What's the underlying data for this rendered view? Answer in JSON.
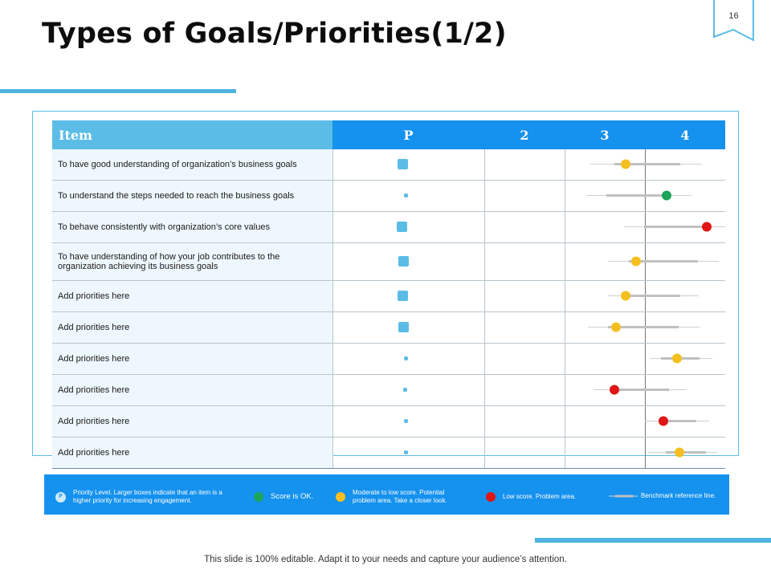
{
  "slide": {
    "number": "16",
    "title": "Types of Goals/Priorities(1/2)",
    "footer": "This slide is 100% editable. Adapt it to your needs and capture your audience’s attention."
  },
  "table": {
    "headers": {
      "item": "Item",
      "p": "P",
      "c2": "2",
      "c3": "3",
      "c4": "4"
    },
    "rows": [
      {
        "item": "To have good understanding of organization’s business goals",
        "priority_box": "large",
        "score_status": "moderate"
      },
      {
        "item": "To understand the steps needed to reach the business goals",
        "priority_box": "small",
        "score_status": "ok"
      },
      {
        "item": "To behave consistently with organization’s core values",
        "priority_box": "large",
        "score_status": "low"
      },
      {
        "item": "To have understanding of how your job contributes to the organization achieving its business goals",
        "priority_box": "large",
        "score_status": "moderate"
      },
      {
        "item": "Add priorities here",
        "priority_box": "large",
        "score_status": "moderate"
      },
      {
        "item": "Add priorities here",
        "priority_box": "large",
        "score_status": "moderate"
      },
      {
        "item": "Add priorities here",
        "priority_box": "small",
        "score_status": "moderate"
      },
      {
        "item": "Add priorities here",
        "priority_box": "small",
        "score_status": "low"
      },
      {
        "item": "Add priorities here",
        "priority_box": "small",
        "score_status": "low"
      },
      {
        "item": "Add priorities here",
        "priority_box": "small",
        "score_status": "moderate"
      }
    ]
  },
  "legend": {
    "p_badge": "P",
    "priority": "Priority Level. Larger boxes indicate that an item is a higher priority for increasing engagement.",
    "ok": "Score is OK.",
    "moderate": "Moderate to low score. Potential problem area. Take a closer look.",
    "low": "Low score. Problem area.",
    "benchmark": "Benchmark reference line."
  },
  "colors": {
    "accent": "#4fb3e0",
    "header_blue": "#1591ee",
    "item_header": "#5bbde6",
    "ok": "#1aa55a",
    "moderate": "#f5c01f",
    "low": "#e01515",
    "benchmark": "#c0c0c0"
  }
}
